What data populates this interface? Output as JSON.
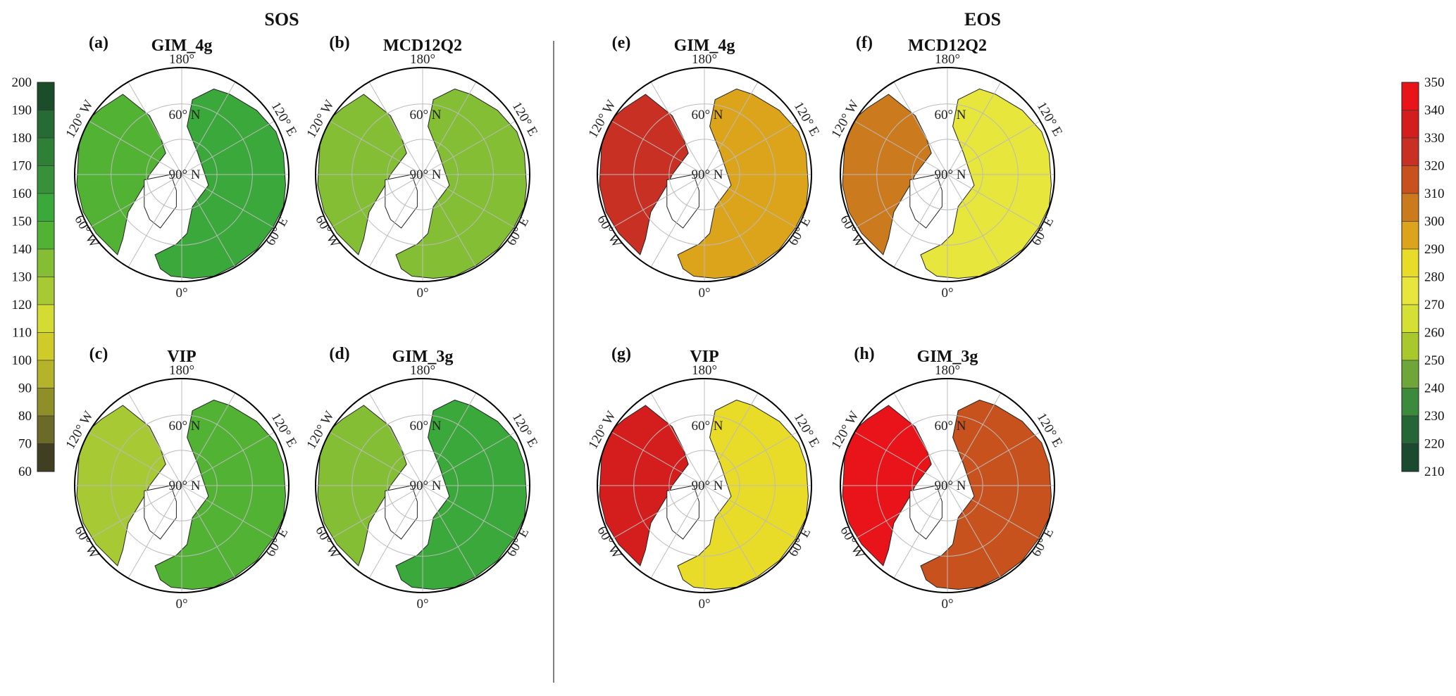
{
  "headers": {
    "left": "SOS",
    "right": "EOS"
  },
  "graticule_labels": {
    "top": "180°",
    "bottom": "0°",
    "upper_left": "120° W",
    "upper_right": "120° E",
    "lower_left": "60° W",
    "lower_right": "60° E",
    "lat60": "60° N",
    "pole": "90° N"
  },
  "panels": [
    {
      "letter": "(a)",
      "title": "GIM_4g",
      "group": "SOS",
      "na_color": "#52b234",
      "eu_color": "#3aa83a"
    },
    {
      "letter": "(b)",
      "title": "MCD12Q2",
      "group": "SOS",
      "na_color": "#84be34",
      "eu_color": "#84be34"
    },
    {
      "letter": "(c)",
      "title": "VIP",
      "group": "SOS",
      "na_color": "#a6c934",
      "eu_color": "#52b234"
    },
    {
      "letter": "(d)",
      "title": "GIM_3g",
      "group": "SOS",
      "na_color": "#84be34",
      "eu_color": "#3aa83a"
    },
    {
      "letter": "(e)",
      "title": "GIM_4g",
      "group": "EOS",
      "na_color": "#c83024",
      "eu_color": "#dca41a"
    },
    {
      "letter": "(f)",
      "title": "MCD12Q2",
      "group": "EOS",
      "na_color": "#cc7a1e",
      "eu_color": "#e6e63c"
    },
    {
      "letter": "(g)",
      "title": "VIP",
      "group": "EOS",
      "na_color": "#d41e1e",
      "eu_color": "#e8dc28"
    },
    {
      "letter": "(h)",
      "title": "GIM_3g",
      "group": "EOS",
      "na_color": "#e8141a",
      "eu_color": "#c8521e"
    }
  ],
  "colorbar_sos": {
    "ticks": [
      "200",
      "190",
      "180",
      "170",
      "160",
      "150",
      "140",
      "130",
      "120",
      "110",
      "100",
      "90",
      "80",
      "70",
      "60"
    ],
    "colors": [
      "#1b4d2a",
      "#256b34",
      "#2e8037",
      "#38913a",
      "#3aa83a",
      "#52b234",
      "#84be34",
      "#a6c934",
      "#d4dc34",
      "#cfcc2a",
      "#b5b32a",
      "#8f8f2a",
      "#6b6a28",
      "#403f22"
    ]
  },
  "colorbar_eos": {
    "ticks": [
      "350",
      "340",
      "330",
      "320",
      "310",
      "300",
      "290",
      "280",
      "270",
      "260",
      "250",
      "240",
      "230",
      "220",
      "210"
    ],
    "colors": [
      "#e8141a",
      "#d41e1e",
      "#c83024",
      "#c8521e",
      "#cc7a1e",
      "#dca41a",
      "#e8dc28",
      "#e6e63c",
      "#d4e034",
      "#a8c82c",
      "#6ea63a",
      "#3c8a3c",
      "#246638",
      "#1a4a30"
    ]
  }
}
